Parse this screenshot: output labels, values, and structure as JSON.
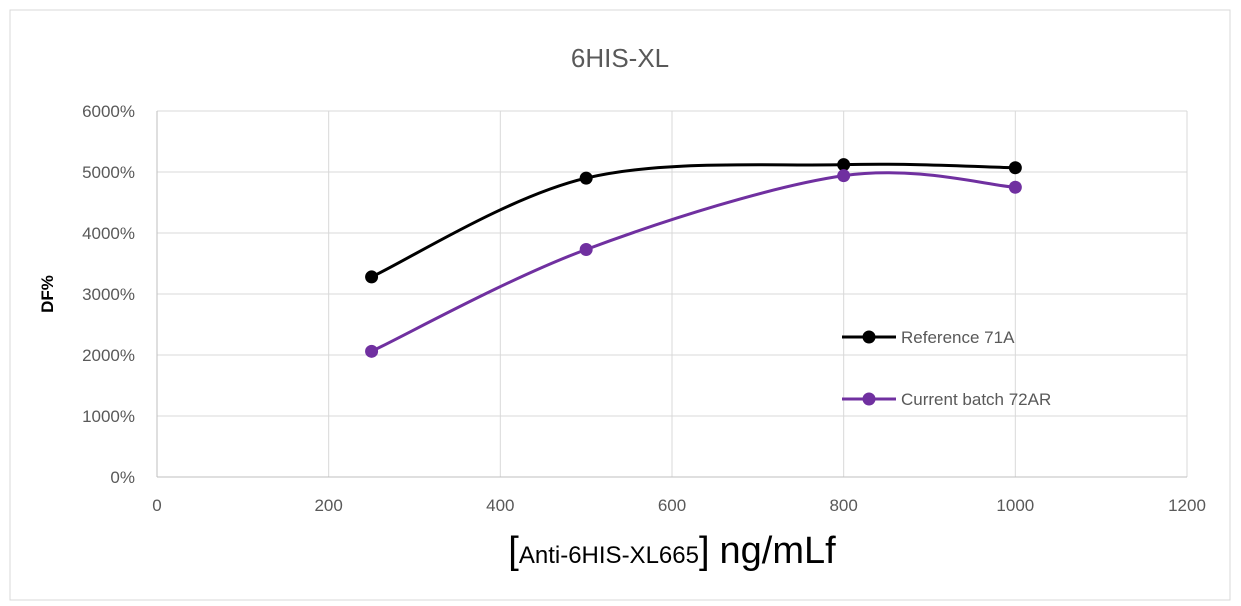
{
  "chart_data": {
    "type": "line",
    "title": "6HIS-XL",
    "ylabel": "DF%",
    "xlabel_bracket_open": "[",
    "xlabel_inner": "Anti-6HIS-XL665",
    "xlabel_bracket_close": "]",
    "xlabel_unit": "ng/mLf",
    "xlim": [
      0,
      1200
    ],
    "ylim": [
      0,
      6000
    ],
    "x_ticks": [
      0,
      200,
      400,
      600,
      800,
      1000,
      1200
    ],
    "y_ticks": [
      0,
      1000,
      2000,
      3000,
      4000,
      5000,
      6000
    ],
    "y_tick_labels": [
      "0%",
      "1000%",
      "2000%",
      "3000%",
      "4000%",
      "5000%",
      "6000%"
    ],
    "grid": true,
    "legend_position": "right",
    "series": [
      {
        "name": "Reference 71A",
        "color": "#000000",
        "x": [
          250,
          500,
          800,
          1000
        ],
        "y": [
          3280,
          4900,
          5120,
          5070
        ]
      },
      {
        "name": "Current batch 72AR",
        "color": "#7030a0",
        "x": [
          250,
          500,
          800,
          1000
        ],
        "y": [
          2060,
          3730,
          4940,
          4750
        ]
      }
    ]
  }
}
